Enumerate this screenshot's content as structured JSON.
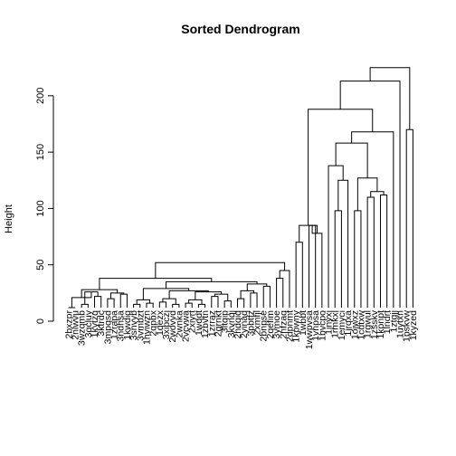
{
  "chart_data": {
    "type": "dendrogram",
    "title": "Sorted Dendrogram",
    "xlabel": "",
    "ylabel": "Height",
    "ylim": [
      0,
      240
    ],
    "yticks": [
      0,
      50,
      100,
      150,
      200
    ],
    "leaves": [
      "2bxzpr",
      "2nlwvu",
      "3wzqmb",
      "3qcluy",
      "1kytzq",
      "3ktrdc",
      "3mpqsd",
      "1zrapa",
      "3ndhsa",
      "1kwdiq",
      "3shvyb",
      "3vmbzt",
      "1hviwzn",
      "2qpbx",
      "1qezx",
      "3xipczi",
      "2wovvd",
      "2wnka",
      "2vcvwa",
      "2xiyrt",
      "1wqdt",
      "1zbvtn",
      "1zrraz",
      "2grnkt",
      "3ltqip",
      "3kvnqj",
      "2hdqiq",
      "2yinaq",
      "3pbtfz",
      "2xmfjl",
      "2bnpse",
      "2qefim",
      "3ymoe",
      "2nfzaq",
      "2dpnmt",
      "1kpwny",
      "1wbbt",
      "1wwpvsa",
      "1vnpsa",
      "1bvcpo",
      "1jnyxi",
      "1rmkxl",
      "1emyci",
      "1jrqxa",
      "1ojwxz",
      "1cdtxw",
      "1rgwul",
      "1zsskv",
      "1kpnpt",
      "1lndrt",
      "1ztgjj",
      "1uytxn",
      "1pskvw",
      "1kyzed"
    ],
    "merges": [
      {
        "l": 1,
        "r": 2,
        "h": 12
      },
      {
        "l": 3,
        "r": 4,
        "h": 15
      },
      {
        "l": 5,
        "r": 6,
        "h": 22
      },
      {
        "l": 7,
        "r": 8,
        "h": 20
      },
      {
        "l": 9,
        "r": 10,
        "h": 24
      },
      {
        "l": "m2",
        "r": "m3",
        "h": 26
      },
      {
        "l": "m1",
        "r": "m6",
        "h": 21
      },
      {
        "l": "m4",
        "r": "m5",
        "h": 25
      },
      {
        "l": "m7",
        "r": "m8",
        "h": 28
      },
      {
        "l": 11,
        "r": 12,
        "h": 15
      },
      {
        "l": 13,
        "r": 14,
        "h": 16
      },
      {
        "l": "m10",
        "r": "m11",
        "h": 19
      },
      {
        "l": 15,
        "r": 16,
        "h": 17
      },
      {
        "l": 17,
        "r": 18,
        "h": 15
      },
      {
        "l": "m13",
        "r": "m14",
        "h": 20
      },
      {
        "l": 19,
        "r": 20,
        "h": 16
      },
      {
        "l": 21,
        "r": 22,
        "h": 15
      },
      {
        "l": "m16",
        "r": "m17",
        "h": 19
      },
      {
        "l": 23,
        "r": 24,
        "h": 22
      },
      {
        "l": 25,
        "r": 26,
        "h": 18
      },
      {
        "l": "m19",
        "r": "m20",
        "h": 24
      },
      {
        "l": "m18",
        "r": "m21",
        "h": 26
      },
      {
        "l": "m15",
        "r": "m22",
        "h": 27
      },
      {
        "l": "m12",
        "r": "m23",
        "h": 29
      },
      {
        "l": 27,
        "r": 28,
        "h": 20
      },
      {
        "l": 29,
        "r": 30,
        "h": 25
      },
      {
        "l": "m25",
        "r": "m26",
        "h": 27
      },
      {
        "l": 31,
        "r": 32,
        "h": 31
      },
      {
        "l": "m27",
        "r": "m28",
        "h": 33
      },
      {
        "l": "m24",
        "r": "m29",
        "h": 35
      },
      {
        "l": "m9",
        "r": "m30",
        "h": 38
      },
      {
        "l": 33,
        "r": 34,
        "h": 38
      },
      {
        "l": "m32",
        "r": 35,
        "h": 45
      },
      {
        "l": "m31",
        "r": "m33",
        "h": 52
      },
      {
        "l": 36,
        "r": 37,
        "h": 70
      },
      {
        "l": 38,
        "r": 39,
        "h": 85
      },
      {
        "l": "m36",
        "r": 40,
        "h": 78
      },
      {
        "l": "m35",
        "r": "m37",
        "h": 85
      },
      {
        "l": 42,
        "r": 43,
        "h": 98
      },
      {
        "l": "m39",
        "r": 44,
        "h": 125
      },
      {
        "l": 41,
        "r": "m40",
        "h": 138
      },
      {
        "l": 45,
        "r": 46,
        "h": 98
      },
      {
        "l": 47,
        "r": 48,
        "h": 110
      },
      {
        "l": 49,
        "r": 50,
        "h": 112
      },
      {
        "l": "m43",
        "r": "m44",
        "h": 115
      },
      {
        "l": "m42",
        "r": "m45",
        "h": 127
      },
      {
        "l": "m41",
        "r": "m46",
        "h": 158
      },
      {
        "l": "m47",
        "r": 51,
        "h": 168
      },
      {
        "l": "m38",
        "r": "m48",
        "h": 188
      },
      {
        "l": "m49",
        "r": 52,
        "h": 213
      },
      {
        "l": 53,
        "r": 54,
        "h": 170
      },
      {
        "l": "m50",
        "r": "m51",
        "h": 225
      }
    ]
  }
}
